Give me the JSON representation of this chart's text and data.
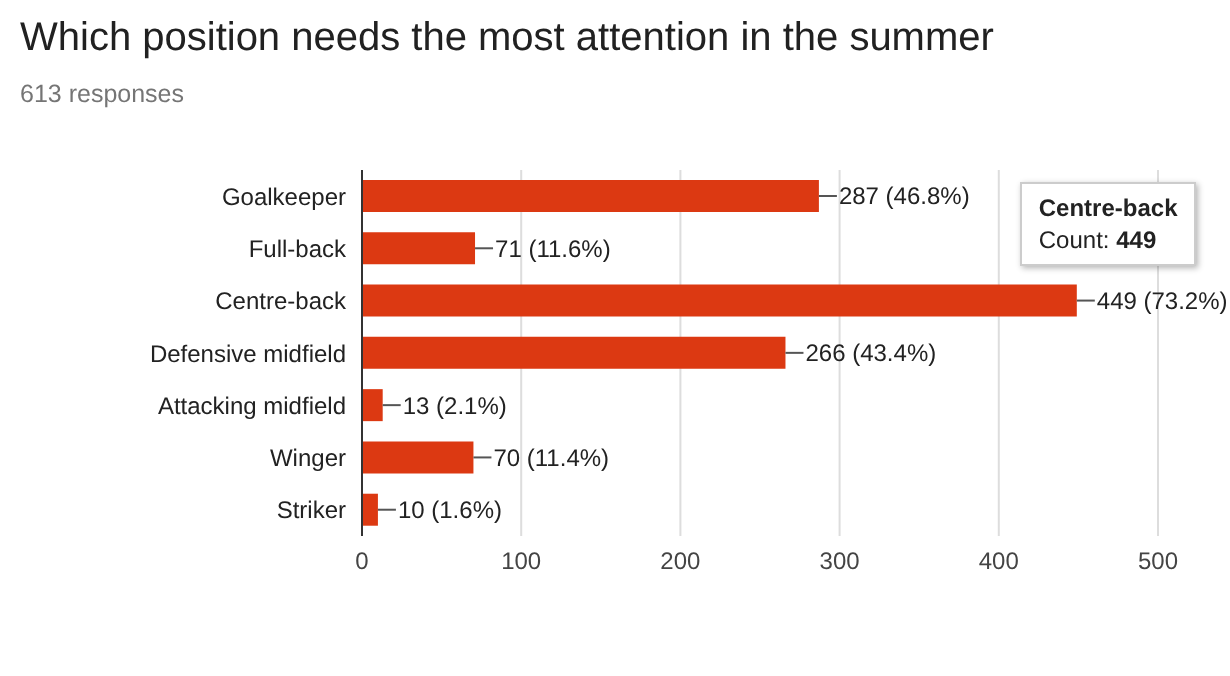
{
  "chart_data": {
    "type": "bar",
    "orientation": "horizontal",
    "title": "Which position needs the most attention in the summer",
    "subtitle": "613 responses",
    "categories": [
      "Goalkeeper",
      "Full-back",
      "Centre-back",
      "Defensive midfield",
      "Attacking midfield",
      "Winger",
      "Striker"
    ],
    "values": [
      287,
      71,
      449,
      266,
      13,
      70,
      10
    ],
    "value_labels": [
      "287 (46.8%)",
      "71 (11.6%)",
      "449 (73.2%)",
      "266 (43.4%)",
      "13 (2.1%)",
      "70 (11.4%)",
      "10 (1.6%)"
    ],
    "color": "#dc3912",
    "xlim": [
      0,
      500
    ],
    "xticks": [
      0,
      100,
      200,
      300,
      400,
      500
    ],
    "grid": "x",
    "legend": false,
    "annotations": [
      {
        "text": "Centre-back\nCount: 449",
        "x": 449,
        "y": "Centre-back"
      }
    ]
  }
}
